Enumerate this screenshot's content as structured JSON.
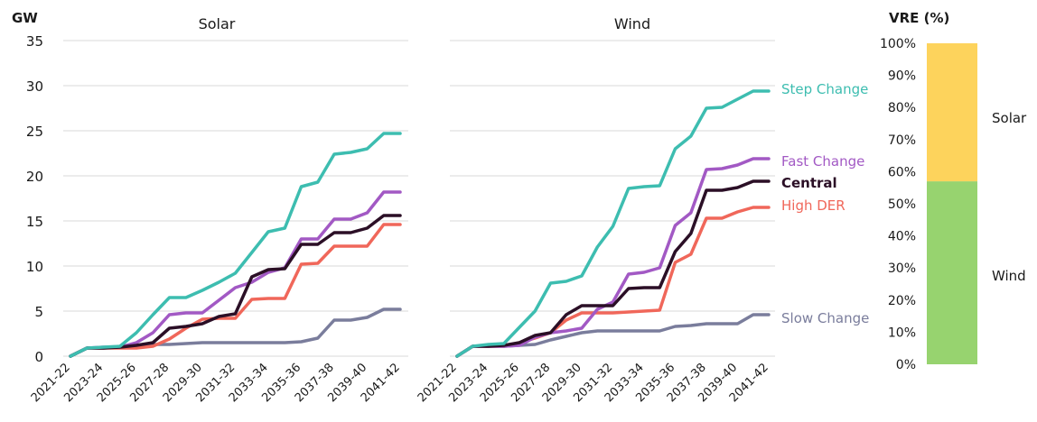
{
  "unit_label": "GW",
  "legend": [
    {
      "name": "Step Change",
      "color": "#3dbdb0"
    },
    {
      "name": "Fast Change",
      "color": "#a259c4"
    },
    {
      "name": "Central",
      "color": "#2b0f26"
    },
    {
      "name": "High DER",
      "color": "#f0675a"
    },
    {
      "name": "Slow Change",
      "color": "#7a7d9c"
    }
  ],
  "chart_data": [
    {
      "type": "line",
      "title": "Solar",
      "ylabel": "GW",
      "ylim": [
        0,
        35
      ],
      "yticks": [
        0,
        5,
        10,
        15,
        20,
        25,
        30,
        35
      ],
      "grid": true,
      "x": [
        "2021-22",
        "2022-23",
        "2023-24",
        "2024-25",
        "2025-26",
        "2026-27",
        "2027-28",
        "2028-29",
        "2029-30",
        "2030-31",
        "2031-32",
        "2032-33",
        "2033-34",
        "2034-35",
        "2035-36",
        "2036-37",
        "2037-38",
        "2038-39",
        "2039-40",
        "2040-41",
        "2041-42"
      ],
      "xtick_labels": [
        "2021-22",
        "2023-24",
        "2025-26",
        "2027-28",
        "2029-30",
        "2031-32",
        "2033-34",
        "2035-36",
        "2037-38",
        "2039-40",
        "2041-42"
      ],
      "series": [
        {
          "name": "Step Change",
          "color": "#3dbdb0",
          "values": [
            0,
            0.9,
            1.0,
            1.1,
            2.6,
            4.6,
            6.5,
            6.5,
            7.3,
            8.2,
            9.2,
            11.5,
            13.8,
            14.2,
            18.8,
            19.3,
            22.4,
            22.6,
            23.0,
            24.7,
            24.7
          ]
        },
        {
          "name": "Fast Change",
          "color": "#a259c4",
          "values": [
            0,
            0.9,
            1.0,
            1.0,
            1.5,
            2.6,
            4.6,
            4.8,
            4.8,
            6.2,
            7.6,
            8.2,
            9.3,
            9.8,
            13.0,
            13.0,
            15.2,
            15.2,
            15.9,
            18.2,
            18.2
          ]
        },
        {
          "name": "Central",
          "color": "#2b0f26",
          "values": [
            0,
            0.9,
            0.9,
            1.0,
            1.2,
            1.5,
            3.1,
            3.3,
            3.6,
            4.4,
            4.7,
            8.8,
            9.6,
            9.7,
            12.4,
            12.4,
            13.7,
            13.7,
            14.2,
            15.6,
            15.6
          ]
        },
        {
          "name": "High DER",
          "color": "#f0675a",
          "values": [
            0,
            0.9,
            0.9,
            0.9,
            0.9,
            1.1,
            1.9,
            3.1,
            4.1,
            4.2,
            4.2,
            6.3,
            6.4,
            6.4,
            10.2,
            10.3,
            12.2,
            12.2,
            12.2,
            14.6,
            14.6
          ]
        },
        {
          "name": "Slow Change",
          "color": "#7a7d9c",
          "values": [
            0,
            0.9,
            0.9,
            1.0,
            1.2,
            1.3,
            1.3,
            1.4,
            1.5,
            1.5,
            1.5,
            1.5,
            1.5,
            1.5,
            1.6,
            2.0,
            4.0,
            4.0,
            4.3,
            5.2,
            5.2
          ]
        }
      ]
    },
    {
      "type": "line",
      "title": "Wind",
      "ylabel": "",
      "ylim": [
        0,
        35
      ],
      "grid": true,
      "x": [
        "2021-22",
        "2022-23",
        "2023-24",
        "2024-25",
        "2025-26",
        "2026-27",
        "2027-28",
        "2028-29",
        "2029-30",
        "2030-31",
        "2031-32",
        "2032-33",
        "2033-34",
        "2034-35",
        "2035-36",
        "2036-37",
        "2037-38",
        "2038-39",
        "2039-40",
        "2040-41",
        "2041-42"
      ],
      "xtick_labels": [
        "2021-22",
        "2023-24",
        "2025-26",
        "2027-28",
        "2029-30",
        "2031-32",
        "2033-34",
        "2035-36",
        "2037-38",
        "2039-40",
        "2041-42"
      ],
      "series": [
        {
          "name": "Step Change",
          "color": "#3dbdb0",
          "values": [
            0,
            1.1,
            1.3,
            1.4,
            3.2,
            5.0,
            8.1,
            8.3,
            8.9,
            12.1,
            14.4,
            18.6,
            18.8,
            18.9,
            23.0,
            24.4,
            27.5,
            27.6,
            28.5,
            29.4,
            29.4
          ]
        },
        {
          "name": "Fast Change",
          "color": "#a259c4",
          "values": [
            0,
            1.1,
            1.1,
            1.1,
            1.2,
            2.1,
            2.6,
            2.8,
            3.1,
            5.2,
            6.0,
            9.1,
            9.3,
            9.8,
            14.5,
            15.9,
            20.7,
            20.8,
            21.2,
            21.9,
            21.9
          ]
        },
        {
          "name": "Central",
          "color": "#2b0f26",
          "values": [
            0,
            1.1,
            1.1,
            1.2,
            1.5,
            2.3,
            2.6,
            4.6,
            5.6,
            5.6,
            5.6,
            7.5,
            7.6,
            7.6,
            11.6,
            13.6,
            18.4,
            18.4,
            18.7,
            19.4,
            19.4
          ]
        },
        {
          "name": "High DER",
          "color": "#f0675a",
          "values": [
            0,
            1.1,
            1.1,
            1.1,
            1.5,
            2.0,
            2.6,
            4.0,
            4.8,
            4.8,
            4.8,
            4.9,
            5.0,
            5.1,
            10.4,
            11.3,
            15.3,
            15.3,
            16.0,
            16.5,
            16.5
          ]
        },
        {
          "name": "Slow Change",
          "color": "#7a7d9c",
          "values": [
            0,
            1.1,
            1.1,
            1.1,
            1.2,
            1.3,
            1.8,
            2.2,
            2.6,
            2.8,
            2.8,
            2.8,
            2.8,
            2.8,
            3.3,
            3.4,
            3.6,
            3.6,
            3.6,
            4.6,
            4.6
          ]
        }
      ]
    },
    {
      "type": "bar",
      "stacked": true,
      "title": "VRE (%)",
      "ylim": [
        0,
        100
      ],
      "yticks": [
        0,
        10,
        20,
        30,
        40,
        50,
        60,
        70,
        80,
        90,
        100
      ],
      "tick_suffix": "%",
      "series": [
        {
          "name": "Wind",
          "color": "#97d36f",
          "values": [
            57
          ]
        },
        {
          "name": "Solar",
          "color": "#fdd35c",
          "values": [
            43
          ]
        }
      ]
    }
  ]
}
